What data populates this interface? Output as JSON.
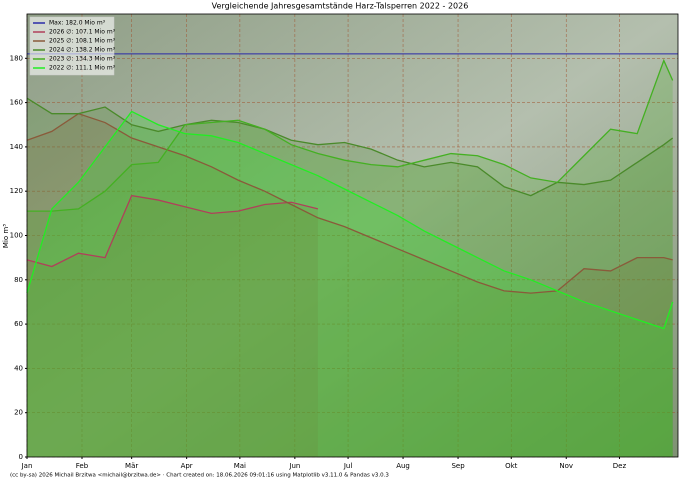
{
  "chart_data": {
    "type": "line",
    "title": "Vergleichende Jahresgesamtstände Harz-Talsperren 2022 - 2026",
    "ylabel": "Mio m³",
    "footer": "(cc by-sa) 2026 Michail Brzitwa <michail@brzitwa.de> · Chart created on: 18.06.2026 09:01:16 using Matplotlib v3.11.0 & Pandas v3.0.3",
    "x": [
      1,
      15,
      30,
      45,
      60,
      75,
      90,
      105,
      120,
      135,
      150,
      165,
      180,
      195,
      210,
      225,
      240,
      255,
      270,
      285,
      300,
      315,
      330,
      345,
      360,
      365
    ],
    "xlim": [
      1,
      368
    ],
    "xticks": [
      {
        "value": 1,
        "label": "Jan"
      },
      {
        "value": 32,
        "label": "Feb"
      },
      {
        "value": 60,
        "label": "Mär"
      },
      {
        "value": 91,
        "label": "Apr"
      },
      {
        "value": 121,
        "label": "Mai"
      },
      {
        "value": 152,
        "label": "Jun"
      },
      {
        "value": 182,
        "label": "Jul"
      },
      {
        "value": 213,
        "label": "Aug"
      },
      {
        "value": 244,
        "label": "Sep"
      },
      {
        "value": 274,
        "label": "Okt"
      },
      {
        "value": 305,
        "label": "Nov"
      },
      {
        "value": 335,
        "label": "Dez"
      }
    ],
    "ylim": [
      0,
      200
    ],
    "yticks": [
      0,
      20,
      40,
      60,
      80,
      100,
      120,
      140,
      160,
      180
    ],
    "grid": true,
    "legend": "upper-left",
    "max_line": {
      "name": "Max: 182.0 Mio m³",
      "value": 182,
      "color": "#2a2aa8"
    },
    "series": [
      {
        "name": "2026 ∅: 107.1 Mio m³",
        "color": "#b0405a",
        "values": [
          89,
          86,
          92,
          90,
          118,
          116,
          113,
          110,
          111,
          114,
          115,
          112,
          null,
          null,
          null,
          null,
          null,
          null,
          null,
          null,
          null,
          null,
          null,
          null,
          null,
          null
        ]
      },
      {
        "name": "2025 ∅: 108.1 Mio m³",
        "color": "#8a5a3a",
        "values": [
          143,
          147,
          155,
          151,
          144,
          140,
          136,
          131,
          125,
          120,
          114,
          108,
          104,
          99,
          94,
          89,
          84,
          79,
          75,
          74,
          75,
          85,
          84,
          90,
          90,
          89
        ]
      },
      {
        "name": "2024 ∅: 138.2 Mio m³",
        "color": "#4a8a2a",
        "values": [
          162,
          155,
          155,
          158,
          150,
          147,
          150,
          152,
          151,
          148,
          143,
          141,
          142,
          139,
          134,
          131,
          133,
          131,
          122,
          118,
          124,
          123,
          125,
          133,
          141,
          144
        ]
      },
      {
        "name": "2023 ∅: 134.3 Mio m³",
        "color": "#44b022",
        "values": [
          111,
          111,
          112,
          120,
          132,
          133,
          150,
          151,
          152,
          148,
          141,
          137,
          134,
          132,
          131,
          134,
          137,
          136,
          132,
          126,
          124,
          136,
          148,
          146,
          179,
          170
        ]
      },
      {
        "name": "2022 ∅: 111.1 Mio m³",
        "color": "#22ee22",
        "values": [
          74,
          112,
          124,
          140,
          156,
          150,
          146,
          145,
          142,
          137,
          132,
          127,
          121,
          115,
          109,
          102,
          96,
          90,
          84,
          80,
          75,
          70,
          66,
          62,
          58,
          70
        ]
      }
    ]
  }
}
